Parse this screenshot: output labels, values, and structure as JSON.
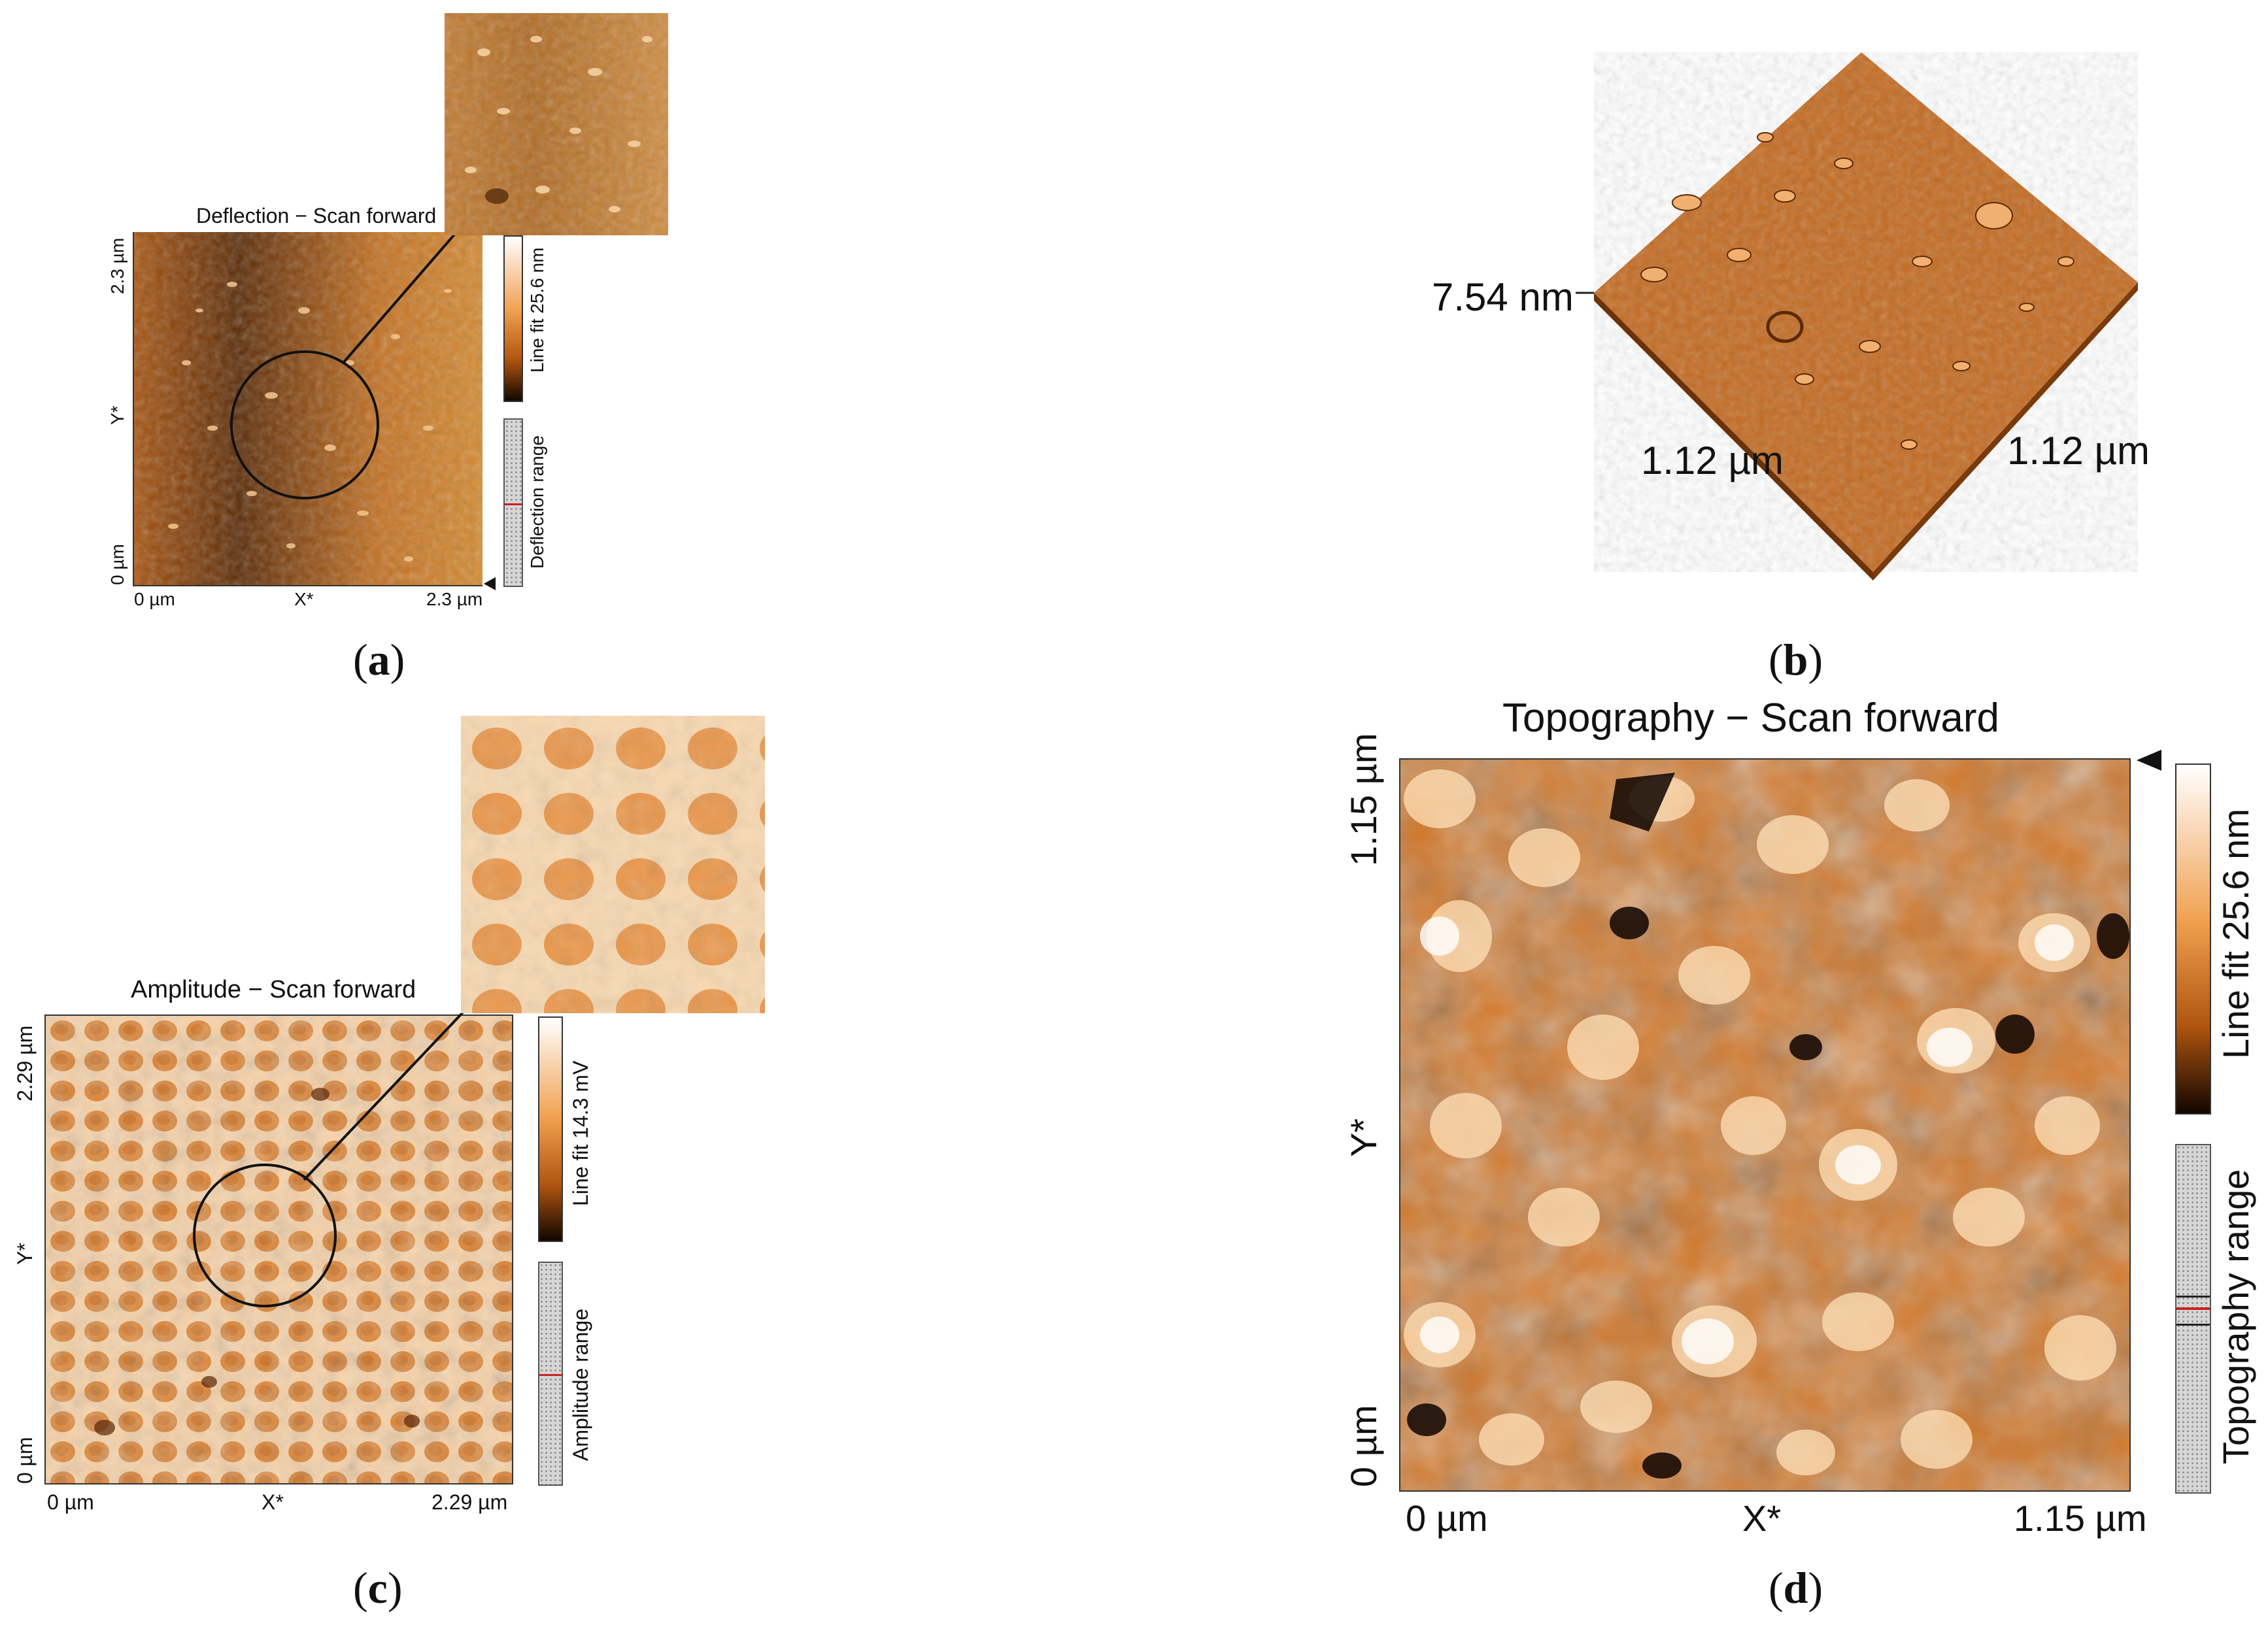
{
  "panel_a": {
    "title": "Deflection − Scan forward",
    "x_min": "0 µm",
    "x_axis": "X*",
    "x_max": "2.3 µm",
    "y_min": "0 µm",
    "y_axis": "Y*",
    "y_max": "2.3 µm",
    "colorbar_label": "Line fit 25.6 nm",
    "range_label": "Deflection range",
    "letter": "a"
  },
  "panel_b": {
    "z_label": "7.54 nm",
    "x_label": "1.12 µm",
    "y_label": "1.12 µm",
    "letter": "b"
  },
  "panel_c": {
    "title": "Amplitude − Scan forward",
    "x_min": "0 µm",
    "x_axis": "X*",
    "x_max": "2.29 µm",
    "y_min": "0 µm",
    "y_axis": "Y*",
    "y_max": "2.29 µm",
    "colorbar_label": "Line fit 14.3 mV",
    "range_label": "Amplitude range",
    "letter": "c"
  },
  "panel_d": {
    "title": "Topography − Scan forward",
    "x_min": "0 µm",
    "x_axis": "X*",
    "x_max": "1.15 µm",
    "y_min": "0 µm",
    "y_axis": "Y*",
    "y_max": "1.15 µm",
    "colorbar_label": "Line fit 25.6 nm",
    "range_label": "Topography range",
    "letter": "d"
  },
  "colors": {
    "afm_dark": "#1a0a00",
    "afm_mid": "#c8641a",
    "afm_light": "#fff4e6",
    "range_marker": "#cc2222"
  }
}
